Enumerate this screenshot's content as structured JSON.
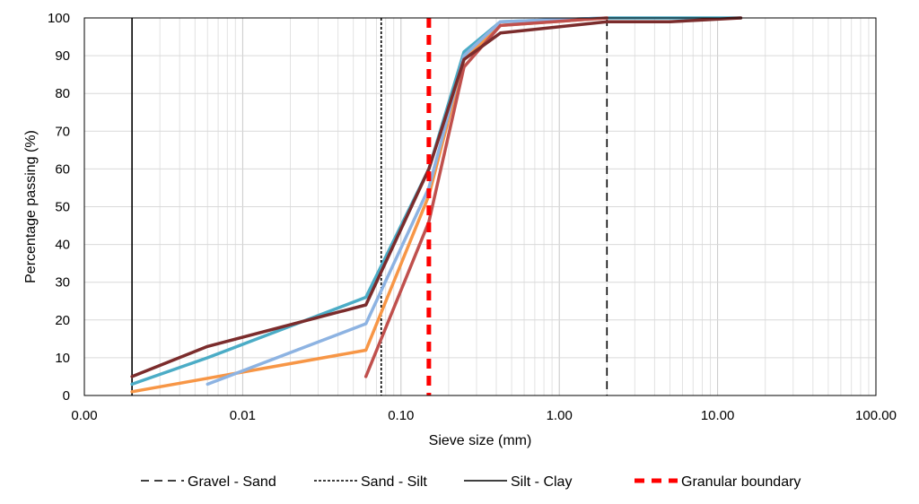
{
  "chart_data": {
    "type": "line",
    "xlabel": "Sieve size (mm)",
    "ylabel": "Percentage passing (%)",
    "x_scale": "log",
    "xlim": [
      0.001,
      100
    ],
    "ylim": [
      0,
      100
    ],
    "x_ticks": [
      0.001,
      0.01,
      0.1,
      1,
      10,
      100
    ],
    "x_tick_labels": [
      "0.00",
      "0.01",
      "0.10",
      "1.00",
      "10.00",
      "100.00"
    ],
    "y_ticks": [
      0,
      10,
      20,
      30,
      40,
      50,
      60,
      70,
      80,
      90,
      100
    ],
    "y_tick_labels": [
      "0",
      "10",
      "20",
      "30",
      "40",
      "50",
      "60",
      "70",
      "80",
      "90",
      "100"
    ],
    "grid": true,
    "legend_position": "bottom",
    "series": [
      {
        "color": "#4BACC6",
        "x": [
          0.002,
          0.006,
          0.06,
          0.15,
          0.25,
          0.425,
          2,
          5,
          14
        ],
        "y": [
          3,
          10,
          26,
          60,
          91,
          99,
          100,
          100,
          100
        ]
      },
      {
        "color": "#F79646",
        "x": [
          0.002,
          0.06,
          0.15,
          0.25,
          0.425,
          2
        ],
        "y": [
          1,
          12,
          53,
          89,
          98,
          100
        ]
      },
      {
        "color": "#8DB3E2",
        "x": [
          0.006,
          0.06,
          0.15,
          0.25,
          0.425,
          2
        ],
        "y": [
          3,
          19,
          55,
          90,
          99,
          100
        ]
      },
      {
        "color": "#C0504D",
        "x": [
          0.06,
          0.15,
          0.25,
          0.425,
          2
        ],
        "y": [
          5,
          46,
          87,
          98,
          100
        ]
      },
      {
        "color": "#7B2C2C",
        "x": [
          0.002,
          0.006,
          0.06,
          0.15,
          0.25,
          0.425,
          2,
          5,
          14
        ],
        "y": [
          5,
          13,
          24,
          60,
          89,
          96,
          99,
          99,
          100
        ]
      }
    ],
    "boundaries": [
      {
        "name": "Gravel - Sand",
        "x": 2,
        "style": "long-dash",
        "color": "#000000"
      },
      {
        "name": "Sand - Silt",
        "x": 0.075,
        "style": "short-dash",
        "color": "#000000"
      },
      {
        "name": "Silt - Clay",
        "x": 0.002,
        "style": "solid",
        "color": "#000000"
      },
      {
        "name": "Granular boundary",
        "x": 0.15,
        "style": "thick-dash",
        "color": "#FF0000"
      }
    ]
  }
}
